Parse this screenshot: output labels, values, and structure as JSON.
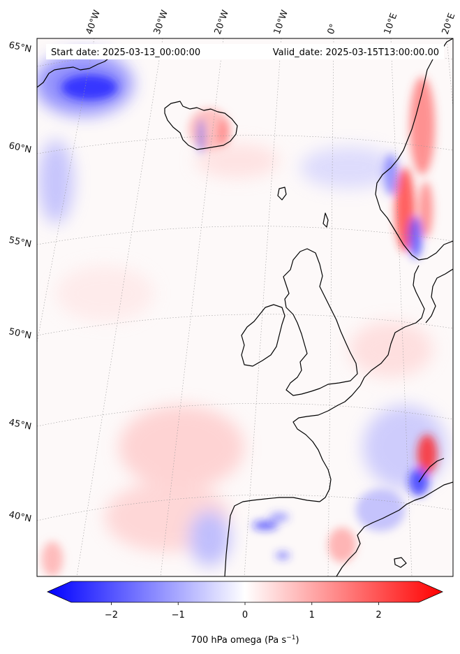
{
  "header": {
    "start_date": "Start date: 2025-03-13_00:00:00",
    "valid_date": "Valid_date: 2025-03-15T13:00:00.00"
  },
  "map": {
    "longitude_labels": [
      "40°W",
      "30°W",
      "20°W",
      "10°W",
      "0°",
      "10°E",
      "20°E"
    ],
    "latitude_labels": [
      "65°N",
      "60°N",
      "55°N",
      "50°N",
      "45°N",
      "40°N"
    ],
    "field_colors": {
      "negative": "#0000ff",
      "neutral": "#ffffff",
      "positive": "#ff0000"
    }
  },
  "colorbar": {
    "ticks": [
      "−2",
      "−1",
      "0",
      "1",
      "2"
    ],
    "tick_values": [
      -2,
      -1,
      0,
      1,
      2
    ],
    "range": [
      -2.6,
      2.6
    ],
    "label_main": "700 hPa omega (Pa s",
    "label_sup": "−1",
    "label_end": ")"
  }
}
